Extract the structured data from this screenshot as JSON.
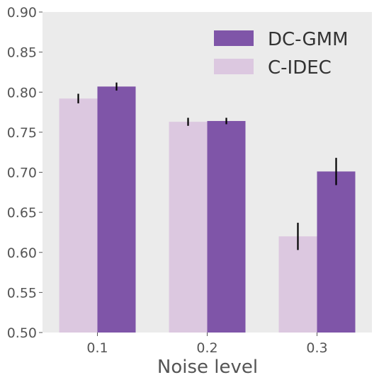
{
  "chart_data": {
    "type": "bar",
    "title": "",
    "xlabel": "Noise level",
    "ylabel": "",
    "categories": [
      "0.1",
      "0.2",
      "0.3"
    ],
    "ylim": [
      0.5,
      0.9
    ],
    "yticks": [
      "0.50",
      "0.55",
      "0.60",
      "0.65",
      "0.70",
      "0.75",
      "0.80",
      "0.85",
      "0.90"
    ],
    "grid": false,
    "background_color": "#ebebeb",
    "legend_position": "top-right",
    "series": [
      {
        "name": "C-IDEC",
        "color": "#dcc8e0",
        "values": [
          0.792,
          0.763,
          0.62
        ],
        "errors": [
          0.006,
          0.005,
          0.017
        ]
      },
      {
        "name": "DC-GMM",
        "color": "#7f55a8",
        "values": [
          0.807,
          0.764,
          0.701
        ],
        "errors": [
          0.005,
          0.004,
          0.017
        ]
      }
    ],
    "legend_order": [
      "DC-GMM",
      "C-IDEC"
    ]
  }
}
